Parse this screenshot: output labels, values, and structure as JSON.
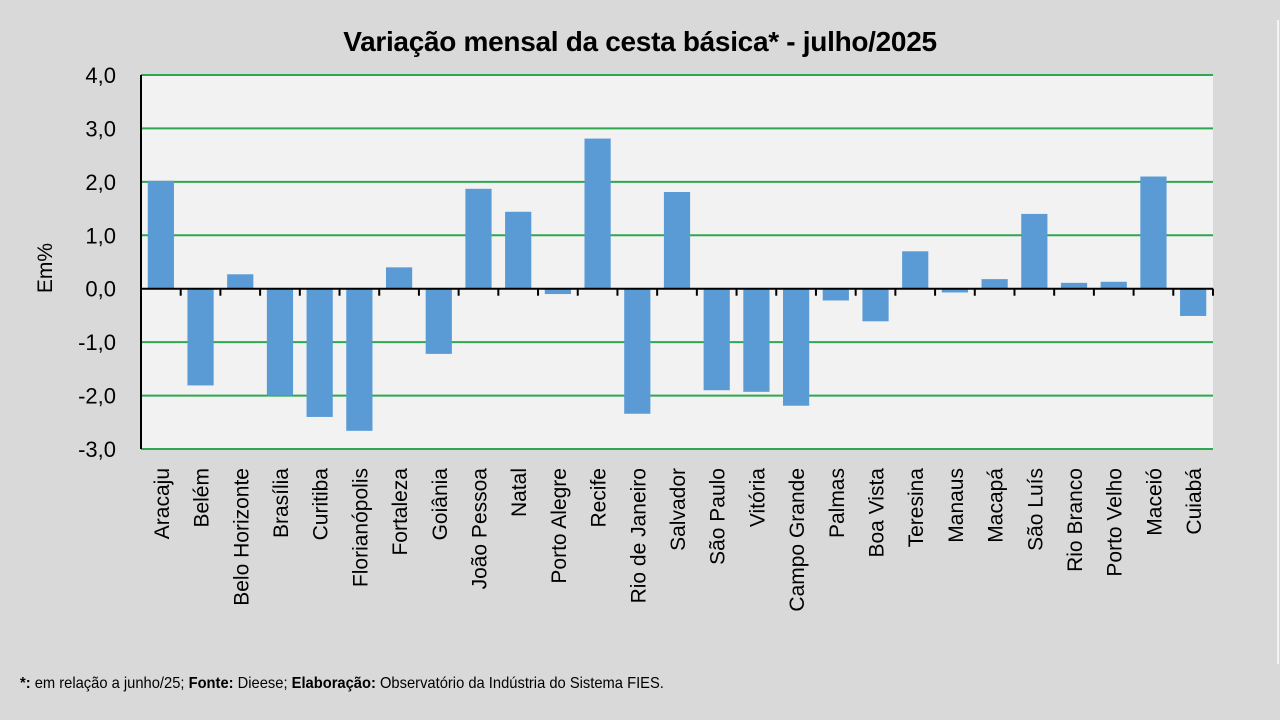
{
  "chart_data": {
    "type": "bar",
    "title": "Variação mensal da cesta básica* - julho/2025",
    "xlabel": "",
    "ylabel": "Em%",
    "ylim": [
      -3.0,
      4.0
    ],
    "yticks": [
      -3.0,
      -2.0,
      -1.0,
      0.0,
      1.0,
      2.0,
      3.0,
      4.0
    ],
    "ytick_labels": [
      "-3,0",
      "-2,0",
      "-1,0",
      "0,0",
      "1,0",
      "2,0",
      "3,0",
      "4,0"
    ],
    "grid": true,
    "legend": "none",
    "categories": [
      "Aracaju",
      "Belém",
      "Belo Horizonte",
      "Brasília",
      "Curitiba",
      "Florianópolis",
      "Fortaleza",
      "Goiânia",
      "João Pessoa",
      "Natal",
      "Porto Alegre",
      "Recife",
      "Rio de Janeiro",
      "Salvador",
      "São Paulo",
      "Vitória",
      "Campo Grande",
      "Palmas",
      "Boa Vista",
      "Teresina",
      "Manaus",
      "Macapá",
      "São Luís",
      "Rio Branco",
      "Porto Velho",
      "Maceió",
      "Cuiabá"
    ],
    "values": [
      2.02,
      -1.81,
      0.27,
      -2.0,
      -2.4,
      -2.66,
      0.4,
      -1.22,
      1.87,
      1.44,
      -0.1,
      2.81,
      -2.34,
      1.81,
      -1.9,
      -1.93,
      -2.19,
      -0.22,
      -0.61,
      0.7,
      -0.07,
      0.18,
      1.4,
      0.11,
      0.13,
      2.1,
      -0.51
    ]
  },
  "colors": {
    "background": "#d9d9d9",
    "plot_background": "#f2f2f2",
    "bar": "#5b9bd5",
    "gridline": "#2ea84f",
    "axis": "#000000"
  },
  "footnote": {
    "star_label": "*:",
    "star_text": " em relação a junho/25; ",
    "source_label": "Fonte:",
    "source_text": " Dieese; ",
    "elab_label": "Elaboração:",
    "elab_text": " Observatório da Indústria do Sistema FIES."
  }
}
